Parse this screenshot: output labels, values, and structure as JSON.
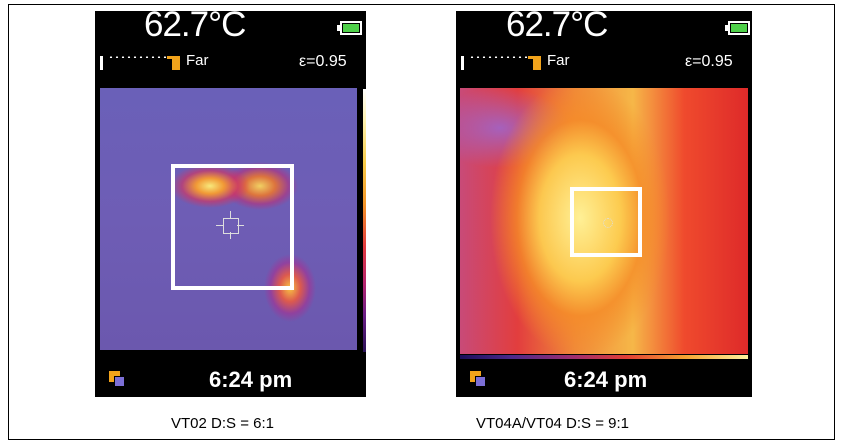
{
  "panels": [
    {
      "temperature": "62.7°C",
      "focus_label": "Far",
      "emissivity": "ε=0.95",
      "time": "6:24 pm",
      "caption": "VT02 D:S = 6:1"
    },
    {
      "temperature": "62.7°C",
      "focus_label": "Far",
      "emissivity": "ε=0.95",
      "time": "6:24 pm",
      "caption": "VT04A/VT04 D:S = 9:1"
    }
  ],
  "colors": {
    "battery": "#4fd14a",
    "focus_marker": "#f2a31b",
    "gallery_icon": "#7c6fd6"
  },
  "icons": [
    "battery-icon",
    "focus-distance-indicator",
    "gallery-icon",
    "crosshair-reticle"
  ]
}
